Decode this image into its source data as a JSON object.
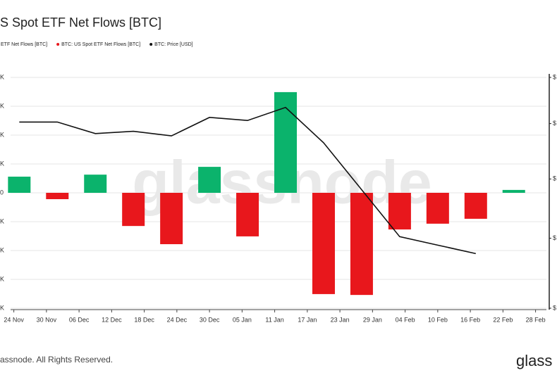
{
  "chart_data": {
    "type": "bar",
    "title": "S Spot ETF Net Flows [BTC]",
    "watermark": "glassnode",
    "footer": "assnode. All Rights Reserved.",
    "logo": "glass",
    "x": [
      1,
      8,
      15,
      22,
      29,
      36,
      43,
      50,
      57,
      64,
      71,
      78,
      85,
      92
    ],
    "xlim": [
      -0.6,
      98
    ],
    "xticks": [
      {
        "value": 0,
        "label": "24 Nov"
      },
      {
        "value": 6,
        "label": "30 Nov"
      },
      {
        "value": 12,
        "label": "06 Dec"
      },
      {
        "value": 18,
        "label": "12 Dec"
      },
      {
        "value": 24,
        "label": "18 Dec"
      },
      {
        "value": 30,
        "label": "24 Dec"
      },
      {
        "value": 36,
        "label": "30 Dec"
      },
      {
        "value": 42,
        "label": "05 Jan"
      },
      {
        "value": 48,
        "label": "11 Jan"
      },
      {
        "value": 54,
        "label": "17 Jan"
      },
      {
        "value": 60,
        "label": "23 Jan"
      },
      {
        "value": 66,
        "label": "29 Jan"
      },
      {
        "value": 72,
        "label": "04 Feb"
      },
      {
        "value": 78,
        "label": "10 Feb"
      },
      {
        "value": 84,
        "label": "16 Feb"
      },
      {
        "value": 90,
        "label": "22 Feb"
      },
      {
        "value": 96,
        "label": "28 Feb"
      }
    ],
    "ylim": [
      -40000,
      40000
    ],
    "yticks": [
      {
        "value": 40000,
        "label": "K"
      },
      {
        "value": 30000,
        "label": "K"
      },
      {
        "value": 20000,
        "label": "K"
      },
      {
        "value": 10000,
        "label": "K"
      },
      0,
      {
        "value": -10000,
        "label": "K"
      },
      {
        "value": -20000,
        "label": "K"
      },
      {
        "value": -30000,
        "label": "K"
      },
      {
        "value": -40000,
        "label": "K"
      }
    ],
    "y2lim": [
      80000,
      110000
    ],
    "y2ticks": [
      {
        "value": 110000,
        "label": "$"
      },
      {
        "value": 104000,
        "label": "$"
      },
      {
        "value": 96800,
        "label": "$"
      },
      {
        "value": 89100,
        "label": "$"
      },
      {
        "value": 80000,
        "label": "$"
      }
    ],
    "grid": true,
    "series": [
      {
        "name": "ETF Net Flows [BTC]",
        "color": "#0bb36c",
        "values": [
          5600,
          null,
          6300,
          null,
          null,
          9000,
          null,
          34900,
          null,
          null,
          null,
          null,
          null,
          1000
        ]
      },
      {
        "name": "BTC: US Spot ETF Net Flows [BTC]",
        "color": "#e8171c",
        "values": [
          null,
          -2200,
          null,
          -11500,
          -17800,
          null,
          -15100,
          null,
          -35100,
          -35400,
          -12700,
          -10700,
          -9000,
          null
        ]
      },
      {
        "name": "BTC: Price [USD]",
        "color": "#111111",
        "type": "line",
        "axis": "y2",
        "values": [
          104200,
          104200,
          102700,
          103000,
          102400,
          104800,
          104400,
          106100,
          101500,
          95400,
          89300,
          88200,
          87100,
          null
        ]
      }
    ]
  }
}
